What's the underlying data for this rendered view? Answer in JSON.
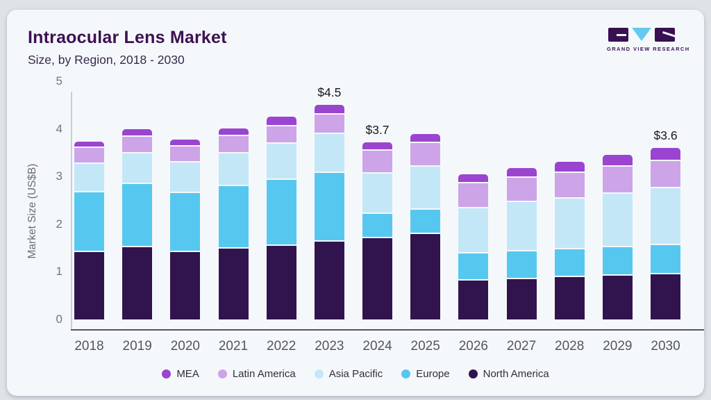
{
  "header": {
    "title": "Intraocular Lens Market",
    "subtitle": "Size, by Region, 2018 - 2030"
  },
  "logo": {
    "text": "GRAND VIEW RESEARCH",
    "brand_dark": "#3a1053",
    "brand_blue": "#64c9ee"
  },
  "chart_data": {
    "type": "bar",
    "stacked": true,
    "title": "Intraocular Lens Market Size, by Region, 2018 - 2030",
    "xlabel": "",
    "ylabel": "Market Size (US$B)",
    "ylim": [
      0,
      5
    ],
    "yticks": [
      5,
      4,
      3,
      2,
      1,
      0
    ],
    "grid": false,
    "legend_position": "bottom",
    "categories": [
      "2018",
      "2019",
      "2020",
      "2021",
      "2022",
      "2023",
      "2024",
      "2025",
      "2026",
      "2027",
      "2028",
      "2029",
      "2030"
    ],
    "series": [
      {
        "name": "North America",
        "color": "#31144d",
        "values": [
          1.42,
          1.51,
          1.42,
          1.49,
          1.55,
          1.63,
          1.71,
          1.79,
          0.82,
          0.84,
          0.89,
          0.92,
          0.95
        ]
      },
      {
        "name": "Europe",
        "color": "#56c8f0",
        "values": [
          1.25,
          1.33,
          1.24,
          1.31,
          1.38,
          1.45,
          0.5,
          0.52,
          0.56,
          0.59,
          0.58,
          0.59,
          0.61
        ]
      },
      {
        "name": "Asia Pacific",
        "color": "#c3e7f7",
        "values": [
          0.6,
          0.64,
          0.64,
          0.68,
          0.76,
          0.81,
          0.85,
          0.9,
          0.95,
          1.04,
          1.07,
          1.13,
          1.19
        ]
      },
      {
        "name": "Latin America",
        "color": "#cda4e8",
        "values": [
          0.33,
          0.36,
          0.33,
          0.37,
          0.36,
          0.41,
          0.48,
          0.49,
          0.52,
          0.5,
          0.54,
          0.56,
          0.57
        ]
      },
      {
        "name": "MEA",
        "color": "#9b44cf",
        "values": [
          0.13,
          0.16,
          0.15,
          0.16,
          0.2,
          0.2,
          0.17,
          0.19,
          0.19,
          0.21,
          0.23,
          0.26,
          0.28
        ]
      }
    ],
    "totals": [
      3.73,
      4.0,
      3.78,
      4.01,
      4.25,
      4.5,
      3.71,
      3.89,
      3.04,
      3.18,
      3.31,
      3.46,
      3.6
    ],
    "annotations": [
      {
        "category": "2023",
        "text": "$4.5"
      },
      {
        "category": "2024",
        "text": "$3.7"
      },
      {
        "category": "2030",
        "text": "$3.6"
      }
    ],
    "legend": [
      {
        "label": "MEA",
        "color": "#9b44cf"
      },
      {
        "label": "Latin America",
        "color": "#cda4e8"
      },
      {
        "label": "Asia Pacific",
        "color": "#c3e7f7"
      },
      {
        "label": "Europe",
        "color": "#56c8f0"
      },
      {
        "label": "North America",
        "color": "#31144d"
      }
    ]
  }
}
